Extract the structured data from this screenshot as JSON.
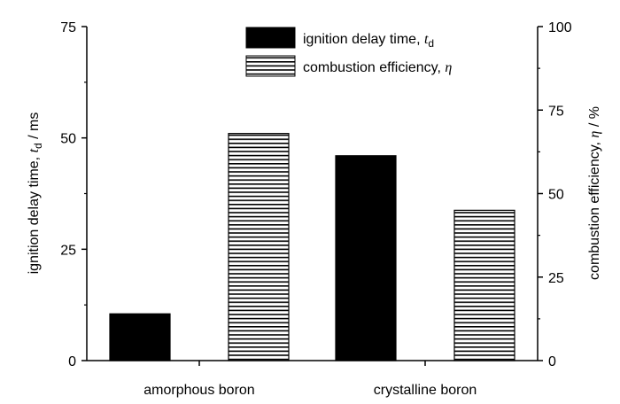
{
  "chart_data": {
    "type": "bar",
    "categories": [
      "amorphous boron",
      "crystalline boron"
    ],
    "series": [
      {
        "name": "ignition delay time, t_d",
        "legend_text": "ignition delay time, ",
        "legend_symbol": "t",
        "legend_subscript": "d",
        "axis": "left",
        "fill": "solid",
        "color": "#000000",
        "values": [
          10.5,
          46.0
        ]
      },
      {
        "name": "combustion efficiency, η",
        "legend_text": "combustion efficiency, ",
        "legend_symbol": "η",
        "legend_subscript": "",
        "axis": "right",
        "fill": "horizontal-stripes",
        "color": "#000000",
        "values": [
          68.0,
          45.0
        ]
      }
    ],
    "y_left": {
      "label_prefix": "ignition delay time, ",
      "label_symbol": "t",
      "label_subscript": "d",
      "label_suffix": " / ms",
      "ylim": [
        0,
        75
      ],
      "ticks": [
        "0",
        "25",
        "50",
        "75"
      ]
    },
    "y_right": {
      "label_prefix": "combustion efficiency, ",
      "label_symbol": "η",
      "label_suffix": " / %",
      "ylim": [
        0,
        100
      ],
      "ticks": [
        "0",
        "25",
        "50",
        "75",
        "100"
      ]
    },
    "legend_position": "top-center",
    "grid": false
  }
}
